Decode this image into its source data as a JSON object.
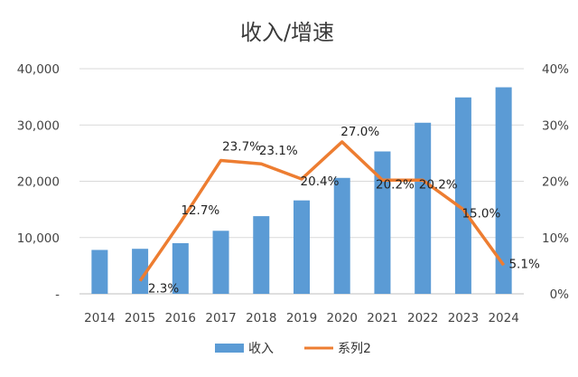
{
  "chart_data": {
    "type": "bar",
    "title": "收入/增速",
    "categories": [
      "2014",
      "2015",
      "2016",
      "2017",
      "2018",
      "2019",
      "2020",
      "2021",
      "2022",
      "2023",
      "2024"
    ],
    "series": [
      {
        "name": "收入",
        "type": "bar",
        "axis": "left",
        "color": "#5b9bd5",
        "values": [
          7800,
          8000,
          9000,
          11200,
          13800,
          16600,
          20600,
          25300,
          30400,
          34900,
          36700
        ]
      },
      {
        "name": "系列2",
        "type": "line",
        "axis": "right",
        "color": "#ed7d31",
        "values": [
          null,
          2.3,
          12.7,
          23.7,
          23.1,
          20.4,
          27.0,
          20.2,
          20.2,
          15.0,
          5.1
        ],
        "data_labels": [
          "",
          "2.3%",
          "12.7%",
          "23.7%",
          "23.1%",
          "20.4%",
          "27.0%",
          "20.2%",
          "20.2%",
          "15.0%",
          "5.1%"
        ]
      }
    ],
    "y_left": {
      "ylim": [
        0,
        40000
      ],
      "tick_values": [
        0,
        10000,
        20000,
        30000,
        40000
      ],
      "tick_labels": [
        "-",
        "10,000",
        "20,000",
        "30,000",
        "40,000"
      ]
    },
    "y_right": {
      "ylim": [
        0,
        40
      ],
      "tick_values": [
        0,
        10,
        20,
        30,
        40
      ],
      "tick_labels": [
        "0%",
        "10%",
        "20%",
        "30%",
        "40%"
      ]
    },
    "grid": true,
    "legend_position": "bottom"
  }
}
